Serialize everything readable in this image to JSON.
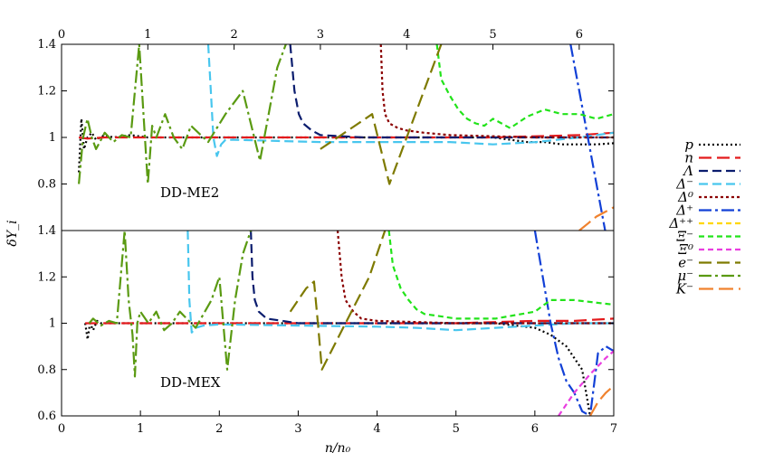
{
  "chart_data": {
    "type": "line",
    "ylabel": "δY_i",
    "xlabel": "n/n₀",
    "xlim": [
      0,
      7
    ],
    "x_ticks": [
      "0",
      "1",
      "2",
      "3",
      "4",
      "5",
      "6",
      "7"
    ],
    "top_axis_lim": [
      0,
      6.4
    ],
    "top_axis_ticks": [
      "0",
      "1",
      "2",
      "3",
      "4",
      "5",
      "6"
    ],
    "legend_position": "right",
    "panels": [
      {
        "label": "DD-ME2",
        "x_axis": "top",
        "ylim": [
          0.6,
          1.4
        ],
        "y_ticks": [
          "0.8",
          "1",
          "1.2",
          "1.4"
        ],
        "series": [
          {
            "name": "p",
            "color": "#000000",
            "dash": "2,3",
            "x": [
              0.2,
              0.23,
              0.26,
              0.3,
              0.35,
              0.4,
              0.5,
              0.6,
              0.8,
              1.0,
              1.5,
              2.0,
              2.5,
              3.0,
              3.5,
              4.0,
              4.5,
              5.0,
              5.2,
              5.4,
              5.6,
              5.8,
              6.0,
              6.2,
              6.4
            ],
            "y": [
              0.85,
              1.08,
              0.95,
              1.0,
              1.02,
              0.99,
              1.01,
              1.0,
              1.01,
              1.0,
              1.0,
              1.0,
              1.0,
              1.0,
              1.0,
              1.0,
              1.0,
              1.0,
              0.99,
              0.98,
              0.98,
              0.97,
              0.97,
              0.97,
              0.975
            ]
          },
          {
            "name": "n",
            "color": "#e41a1c",
            "dash": "14,6",
            "x": [
              0.2,
              0.3,
              0.5,
              1.0,
              2.0,
              3.0,
              4.0,
              5.0,
              6.0,
              6.4
            ],
            "y": [
              1.0,
              0.995,
              1.0,
              1.0,
              1.0,
              1.0,
              1.0,
              1.0,
              1.01,
              1.02
            ]
          },
          {
            "name": "Λ",
            "color": "#0b1d6e",
            "dash": "10,5",
            "x": [
              2.65,
              2.7,
              2.75,
              2.8,
              2.9,
              3.0,
              3.5,
              4.0,
              4.5,
              5.0,
              5.5,
              6.0,
              6.4
            ],
            "y": [
              1.4,
              1.2,
              1.1,
              1.06,
              1.03,
              1.01,
              1.0,
              1.0,
              1.0,
              1.0,
              1.0,
              1.0,
              1.0
            ]
          },
          {
            "name": "Δ⁻",
            "color": "#48c6ee",
            "dash": "10,5",
            "x": [
              1.7,
              1.73,
              1.76,
              1.8,
              1.85,
              1.9,
              2.0,
              2.5,
              3.0,
              3.5,
              4.0,
              4.5,
              5.0,
              5.5,
              6.0,
              6.4
            ],
            "y": [
              1.4,
              1.2,
              1.0,
              0.92,
              0.97,
              0.99,
              0.99,
              0.985,
              0.98,
              0.98,
              0.98,
              0.98,
              0.97,
              0.98,
              1.0,
              1.02
            ]
          },
          {
            "name": "Δ⁰",
            "color": "#8b0000",
            "dash": "3,3",
            "x": [
              3.7,
              3.72,
              3.75,
              3.8,
              3.9,
              4.0,
              4.2,
              4.5,
              5.0,
              5.5,
              6.0,
              6.4
            ],
            "y": [
              1.4,
              1.2,
              1.1,
              1.06,
              1.04,
              1.03,
              1.02,
              1.01,
              1.005,
              1.0,
              1.0,
              1.0
            ]
          },
          {
            "name": "Δ⁺",
            "color": "#1240d6",
            "dash": "14,4,3,4",
            "x": [
              5.9,
              6.0,
              6.1,
              6.2,
              6.3,
              6.4
            ],
            "y": [
              1.4,
              1.2,
              1.0,
              0.8,
              0.6,
              0.58
            ]
          },
          {
            "name": "Δ⁺⁺",
            "color": "#ffd700",
            "dash": "6,4",
            "x": [],
            "y": []
          },
          {
            "name": "Ξ⁻",
            "color": "#22e31a",
            "dash": "6,4",
            "x": [
              4.35,
              4.4,
              4.5,
              4.6,
              4.7,
              4.8,
              4.9,
              5.0,
              5.1,
              5.2,
              5.4,
              5.6,
              5.8,
              6.0,
              6.2,
              6.4
            ],
            "y": [
              1.4,
              1.25,
              1.18,
              1.12,
              1.08,
              1.06,
              1.05,
              1.08,
              1.06,
              1.04,
              1.09,
              1.12,
              1.1,
              1.1,
              1.08,
              1.1
            ]
          },
          {
            "name": "Ξ⁰",
            "color": "#e93ee0",
            "dash": "6,4",
            "x": [],
            "y": []
          },
          {
            "name": "e⁻",
            "color": "#7e7a00",
            "dash": "14,6",
            "x": [
              3.0,
              3.2,
              3.4,
              3.6,
              3.8,
              4.0,
              4.2,
              4.4
            ],
            "y": [
              0.95,
              1.0,
              1.05,
              1.1,
              0.8,
              1.0,
              1.2,
              1.4
            ]
          },
          {
            "name": "μ⁻",
            "color": "#5a9a12",
            "dash": "14,4,3,4",
            "x": [
              0.2,
              0.25,
              0.3,
              0.35,
              0.4,
              0.5,
              0.6,
              0.7,
              0.8,
              0.9,
              0.95,
              1.0,
              1.05,
              1.1,
              1.2,
              1.3,
              1.4,
              1.5,
              1.7,
              1.9,
              2.1,
              2.3,
              2.4,
              2.5,
              2.6
            ],
            "y": [
              0.8,
              1.0,
              1.08,
              1.0,
              0.95,
              1.02,
              0.98,
              1.01,
              1.0,
              1.4,
              1.1,
              0.8,
              1.05,
              1.0,
              1.1,
              1.0,
              0.95,
              1.05,
              0.98,
              1.1,
              1.2,
              0.9,
              1.1,
              1.3,
              1.4
            ]
          },
          {
            "name": "K⁻",
            "color": "#f0822e",
            "dash": "16,6",
            "x": [
              6.0,
              6.1,
              6.2,
              6.3,
              6.4
            ],
            "y": [
              0.6,
              0.63,
              0.66,
              0.68,
              0.7
            ]
          }
        ]
      },
      {
        "label": "DD-MEX",
        "x_axis": "bottom",
        "ylim": [
          0.6,
          1.4
        ],
        "y_ticks": [
          "0.6",
          "0.8",
          "1",
          "1.2",
          "1.4"
        ],
        "series": [
          {
            "name": "p",
            "color": "#000000",
            "dash": "2,3",
            "x": [
              0.3,
              0.33,
              0.36,
              0.4,
              0.45,
              0.5,
              0.6,
              0.8,
              1.0,
              2.0,
              3.0,
              4.0,
              5.0,
              5.5,
              6.0,
              6.2,
              6.4,
              6.6,
              6.7
            ],
            "y": [
              1.0,
              0.93,
              1.0,
              0.97,
              1.01,
              1.0,
              1.0,
              1.0,
              1.0,
              1.0,
              1.0,
              1.0,
              1.0,
              1.0,
              0.98,
              0.95,
              0.9,
              0.8,
              0.6
            ]
          },
          {
            "name": "n",
            "color": "#e41a1c",
            "dash": "14,6",
            "x": [
              0.3,
              0.5,
              1.0,
              2.0,
              3.0,
              4.0,
              5.0,
              6.0,
              6.5,
              7.0
            ],
            "y": [
              1.0,
              1.0,
              1.0,
              1.0,
              1.0,
              1.0,
              1.0,
              1.01,
              1.01,
              1.02
            ]
          },
          {
            "name": "Λ",
            "color": "#0b1d6e",
            "dash": "10,5",
            "x": [
              2.4,
              2.42,
              2.45,
              2.5,
              2.6,
              2.8,
              3.0,
              4.0,
              5.0,
              6.0,
              7.0
            ],
            "y": [
              1.4,
              1.2,
              1.1,
              1.05,
              1.02,
              1.01,
              1.0,
              1.0,
              1.0,
              1.0,
              1.0
            ]
          },
          {
            "name": "Δ⁻",
            "color": "#48c6ee",
            "dash": "10,5",
            "x": [
              1.6,
              1.62,
              1.65,
              1.7,
              1.8,
              2.0,
              3.0,
              4.0,
              4.5,
              5.0,
              5.5,
              6.0,
              6.5,
              7.0
            ],
            "y": [
              1.4,
              1.1,
              0.96,
              0.98,
              0.99,
              0.995,
              0.99,
              0.985,
              0.98,
              0.97,
              0.98,
              0.99,
              1.0,
              1.0
            ]
          },
          {
            "name": "Δ⁰",
            "color": "#8b0000",
            "dash": "3,3",
            "x": [
              3.5,
              3.55,
              3.6,
              3.7,
              3.8,
              4.0,
              4.5,
              5.0,
              6.0,
              7.0
            ],
            "y": [
              1.4,
              1.2,
              1.1,
              1.05,
              1.02,
              1.01,
              1.005,
              1.0,
              1.0,
              1.0
            ]
          },
          {
            "name": "Δ⁺",
            "color": "#1240d6",
            "dash": "14,4,3,4",
            "x": [
              6.0,
              6.1,
              6.2,
              6.3,
              6.4,
              6.5,
              6.6,
              6.7,
              6.8,
              6.9,
              7.0
            ],
            "y": [
              1.4,
              1.2,
              1.0,
              0.85,
              0.75,
              0.7,
              0.62,
              0.6,
              0.87,
              0.9,
              0.88
            ]
          },
          {
            "name": "Δ⁺⁺",
            "color": "#ffd700",
            "dash": "6,4",
            "x": [],
            "y": []
          },
          {
            "name": "Ξ⁻",
            "color": "#22e31a",
            "dash": "6,4",
            "x": [
              4.15,
              4.2,
              4.3,
              4.4,
              4.5,
              4.6,
              4.8,
              5.0,
              5.5,
              6.0,
              6.2,
              6.5,
              7.0
            ],
            "y": [
              1.4,
              1.25,
              1.15,
              1.1,
              1.06,
              1.04,
              1.03,
              1.02,
              1.02,
              1.05,
              1.1,
              1.1,
              1.08
            ]
          },
          {
            "name": "Ξ⁰",
            "color": "#e93ee0",
            "dash": "6,4",
            "x": [
              6.3,
              6.5,
              6.7,
              6.9,
              7.0
            ],
            "y": [
              0.6,
              0.7,
              0.78,
              0.85,
              0.88
            ]
          },
          {
            "name": "e⁻",
            "color": "#7e7a00",
            "dash": "14,6",
            "x": [
              2.9,
              3.0,
              3.1,
              3.2,
              3.25,
              3.3,
              3.6,
              3.9,
              4.1
            ],
            "y": [
              1.05,
              1.1,
              1.15,
              1.18,
              1.0,
              0.8,
              1.0,
              1.2,
              1.4
            ]
          },
          {
            "name": "μ⁻",
            "color": "#5a9a12",
            "dash": "14,4,3,4",
            "x": [
              0.35,
              0.4,
              0.5,
              0.6,
              0.7,
              0.8,
              0.85,
              0.9,
              0.93,
              0.96,
              1.0,
              1.1,
              1.2,
              1.3,
              1.4,
              1.5,
              1.7,
              1.9,
              2.0,
              2.1,
              2.2,
              2.3,
              2.4
            ],
            "y": [
              1.0,
              1.02,
              0.99,
              1.01,
              1.0,
              1.4,
              1.1,
              0.95,
              0.77,
              1.0,
              1.05,
              1.0,
              1.05,
              0.97,
              1.0,
              1.05,
              0.98,
              1.1,
              1.2,
              0.8,
              1.1,
              1.3,
              1.4
            ]
          },
          {
            "name": "K⁻",
            "color": "#f0822e",
            "dash": "16,6",
            "x": [
              6.7,
              6.8,
              6.9,
              7.0
            ],
            "y": [
              0.6,
              0.66,
              0.7,
              0.73
            ]
          }
        ]
      }
    ]
  }
}
